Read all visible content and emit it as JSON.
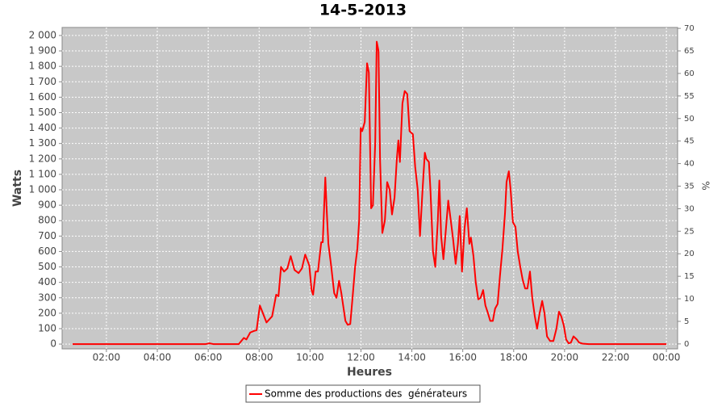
{
  "chart_data": {
    "type": "line",
    "title": "14-5-2013",
    "x_label": "Heures",
    "y_label": "Watts",
    "y2_label": "%",
    "grid": true,
    "legend": "bottom",
    "xlim": [
      0.26,
      24.44
    ],
    "ylim": [
      -31,
      2052
    ],
    "y2lim": [
      -1.1,
      70.2
    ],
    "xticks": [
      {
        "value": 2,
        "label": "02:00"
      },
      {
        "value": 4,
        "label": "04:00"
      },
      {
        "value": 6,
        "label": "06:00"
      },
      {
        "value": 8,
        "label": "08:00"
      },
      {
        "value": 10,
        "label": "10:00"
      },
      {
        "value": 12,
        "label": "12:00"
      },
      {
        "value": 14,
        "label": "14:00"
      },
      {
        "value": 16,
        "label": "16:00"
      },
      {
        "value": 18,
        "label": "18:00"
      },
      {
        "value": 20,
        "label": "20:00"
      },
      {
        "value": 22,
        "label": "22:00"
      },
      {
        "value": 24,
        "label": "00:00"
      }
    ],
    "yticks": [
      0,
      100,
      200,
      300,
      400,
      500,
      600,
      700,
      800,
      900,
      {
        "value": 1000,
        "label": "1 000"
      },
      {
        "value": 1100,
        "label": "1 100"
      },
      {
        "value": 1200,
        "label": "1 200"
      },
      {
        "value": 1300,
        "label": "1 300"
      },
      {
        "value": 1400,
        "label": "1 400"
      },
      {
        "value": 1500,
        "label": "1 500"
      },
      {
        "value": 1600,
        "label": "1 600"
      },
      {
        "value": 1700,
        "label": "1 700"
      },
      {
        "value": 1800,
        "label": "1 800"
      },
      {
        "value": 1900,
        "label": "1 900"
      },
      {
        "value": 2000,
        "label": "2 000"
      }
    ],
    "y2ticks": [
      0,
      5,
      10,
      15,
      20,
      25,
      30,
      35,
      40,
      45,
      50,
      55,
      60,
      65,
      70
    ],
    "x": [
      0.67,
      5.9,
      6.05,
      6.2,
      7.2,
      7.4,
      7.5,
      7.65,
      7.8,
      7.9,
      8.03,
      8.29,
      8.51,
      8.67,
      8.76,
      8.86,
      8.98,
      9.11,
      9.24,
      9.39,
      9.55,
      9.68,
      9.81,
      9.97,
      10.06,
      10.12,
      10.22,
      10.31,
      10.44,
      10.5,
      10.6,
      10.66,
      10.72,
      10.82,
      10.95,
      11.04,
      11.14,
      11.23,
      11.39,
      11.48,
      11.58,
      11.67,
      11.77,
      11.86,
      11.93,
      11.99,
      12.05,
      12.15,
      12.24,
      12.31,
      12.4,
      12.47,
      12.56,
      12.62,
      12.69,
      12.75,
      12.84,
      12.94,
      13.03,
      13.13,
      13.22,
      13.32,
      13.41,
      13.47,
      13.53,
      13.63,
      13.72,
      13.82,
      13.91,
      14.04,
      14.13,
      14.23,
      14.32,
      14.42,
      14.51,
      14.57,
      14.67,
      14.73,
      14.83,
      14.92,
      15.02,
      15.08,
      15.15,
      15.24,
      15.34,
      15.43,
      15.53,
      15.62,
      15.72,
      15.81,
      15.88,
      15.97,
      16.07,
      16.16,
      16.26,
      16.32,
      16.42,
      16.51,
      16.61,
      16.7,
      16.8,
      16.89,
      16.99,
      17.08,
      17.18,
      17.27,
      17.37,
      17.46,
      17.56,
      17.66,
      17.72,
      17.81,
      17.88,
      17.97,
      18.07,
      18.16,
      18.26,
      18.35,
      18.45,
      18.54,
      18.64,
      18.73,
      18.83,
      18.92,
      19.02,
      19.12,
      19.21,
      19.31,
      19.43,
      19.56,
      19.68,
      19.78,
      19.87,
      19.97,
      20.06,
      20.16,
      20.25,
      20.35,
      20.48,
      20.57,
      20.7,
      20.95,
      24.0
    ],
    "series": [
      {
        "name": "Somme des productions des  générateurs",
        "color": "#ff0000",
        "values": [
          0,
          0,
          5,
          0,
          0,
          40,
          30,
          75,
          85,
          90,
          250,
          140,
          180,
          320,
          310,
          500,
          470,
          490,
          570,
          480,
          460,
          490,
          580,
          510,
          350,
          320,
          470,
          470,
          660,
          660,
          1080,
          850,
          650,
          520,
          330,
          300,
          410,
          330,
          150,
          125,
          130,
          300,
          500,
          620,
          800,
          1400,
          1380,
          1440,
          1820,
          1760,
          880,
          900,
          1300,
          1960,
          1900,
          1200,
          720,
          800,
          1050,
          1000,
          840,
          950,
          1200,
          1320,
          1180,
          1560,
          1640,
          1620,
          1380,
          1360,
          1150,
          1000,
          700,
          1000,
          1240,
          1200,
          1180,
          1000,
          600,
          500,
          800,
          1060,
          700,
          550,
          750,
          930,
          800,
          680,
          520,
          650,
          830,
          470,
          750,
          880,
          650,
          690,
          570,
          400,
          290,
          300,
          350,
          250,
          200,
          150,
          150,
          230,
          260,
          440,
          620,
          850,
          1050,
          1120,
          1000,
          790,
          760,
          600,
          500,
          420,
          360,
          360,
          470,
          300,
          180,
          100,
          200,
          280,
          200,
          50,
          20,
          20,
          100,
          210,
          180,
          120,
          30,
          5,
          10,
          50,
          30,
          10,
          3,
          0,
          0
        ]
      }
    ]
  }
}
